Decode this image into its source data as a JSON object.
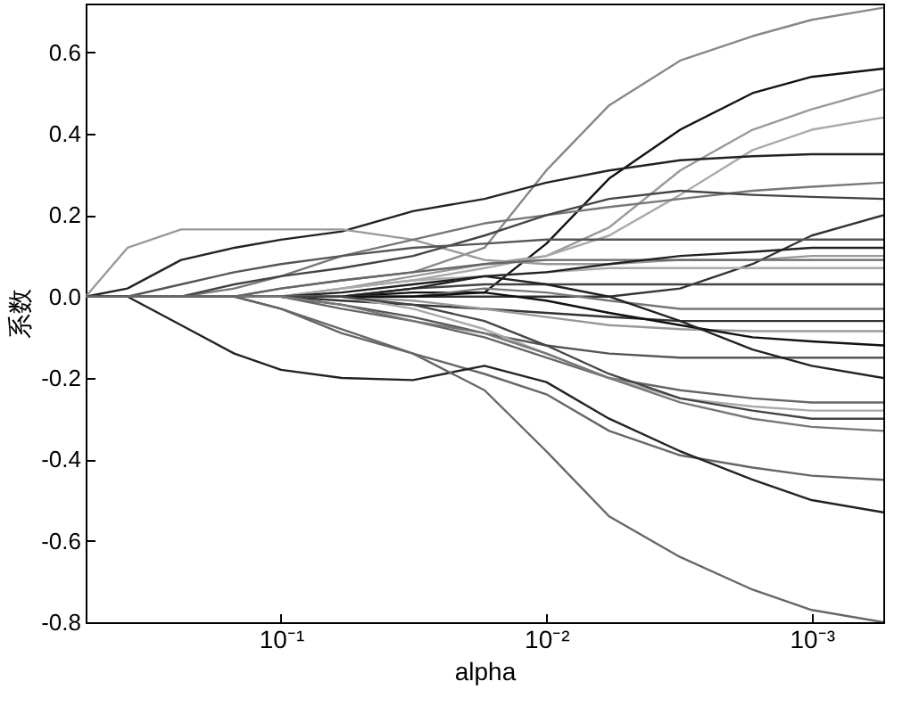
{
  "chart_data": {
    "type": "line",
    "xlabel": "alpha",
    "ylabel": "系数",
    "log": "x",
    "x": [
      0.545,
      0.379,
      0.238,
      0.15,
      0.1,
      0.059,
      0.0318,
      0.0171,
      0.01,
      0.0058,
      0.00313,
      0.00167,
      0.001,
      0.000537
    ],
    "xlim": [
      0.545,
      0.000537
    ],
    "xticks": [
      {
        "value": 0.1,
        "label": "10⁻¹"
      },
      {
        "value": 0.01,
        "label": "10⁻²"
      },
      {
        "value": 0.001,
        "label": "10⁻³"
      }
    ],
    "ylim": [
      -0.8,
      0.72
    ],
    "yticks": [
      {
        "value": -0.8,
        "label": "-0.8"
      },
      {
        "value": -0.6,
        "label": "-0.6"
      },
      {
        "value": -0.4,
        "label": "-0.4"
      },
      {
        "value": -0.2,
        "label": "-0.2"
      },
      {
        "value": 0,
        "label": "0.0"
      },
      {
        "value": 0.2,
        "label": "0.2"
      },
      {
        "value": 0.4,
        "label": "0.4"
      },
      {
        "value": 0.6,
        "label": "0.6"
      }
    ],
    "series": [
      {
        "color": "#888888",
        "values": [
          0,
          0,
          0,
          0,
          0.02,
          0.04,
          0.06,
          0.12,
          0.31,
          0.47,
          0.58,
          0.64,
          0.68,
          0.71
        ]
      },
      {
        "color": "#111111",
        "values": [
          0,
          0,
          0,
          0,
          0,
          0,
          0.01,
          0.01,
          0.13,
          0.29,
          0.41,
          0.5,
          0.54,
          0.56
        ]
      },
      {
        "color": "#999999",
        "values": [
          0,
          0,
          0,
          0,
          0,
          0.02,
          0.05,
          0.08,
          0.1,
          0.17,
          0.31,
          0.41,
          0.46,
          0.51
        ]
      },
      {
        "color": "#aaaaaa",
        "values": [
          0,
          0,
          0,
          0,
          0,
          0.02,
          0.04,
          0.07,
          0.1,
          0.15,
          0.25,
          0.36,
          0.41,
          0.44
        ]
      },
      {
        "color": "#222222",
        "values": [
          0,
          0.02,
          0.09,
          0.12,
          0.14,
          0.16,
          0.21,
          0.24,
          0.28,
          0.31,
          0.335,
          0.345,
          0.35,
          0.35
        ]
      },
      {
        "color": "#999999",
        "values": [
          0,
          0.12,
          0.165,
          0.165,
          0.165,
          0.165,
          0.14,
          0.09,
          0.08,
          0.08,
          0.09,
          0.09,
          0.1,
          0.1
        ]
      },
      {
        "color": "#777777",
        "values": [
          0,
          0,
          0,
          0.02,
          0.05,
          0.1,
          0.14,
          0.18,
          0.2,
          0.22,
          0.24,
          0.26,
          0.27,
          0.28
        ]
      },
      {
        "color": "#444444",
        "values": [
          0,
          0,
          0,
          0.03,
          0.05,
          0.07,
          0.1,
          0.15,
          0.2,
          0.24,
          0.26,
          0.25,
          0.245,
          0.24
        ]
      },
      {
        "color": "#333333",
        "values": [
          0,
          0,
          0,
          0,
          0,
          0,
          0,
          0,
          0,
          0,
          0.02,
          0.08,
          0.15,
          0.2
        ]
      },
      {
        "color": "#555555",
        "values": [
          0,
          0,
          0.03,
          0.06,
          0.08,
          0.1,
          0.12,
          0.13,
          0.14,
          0.14,
          0.14,
          0.14,
          0.14,
          0.14
        ]
      },
      {
        "color": "#666666",
        "values": [
          0,
          0,
          0,
          0,
          0.02,
          0.04,
          0.06,
          0.08,
          0.09,
          0.09,
          0.09,
          0.09,
          0.09,
          0.09
        ]
      },
      {
        "color": "#aaaaaa",
        "values": [
          0,
          0,
          0,
          0,
          0,
          0.02,
          0.04,
          0.05,
          0.06,
          0.07,
          0.07,
          0.07,
          0.07,
          0.07
        ]
      },
      {
        "color": "#444444",
        "values": [
          0,
          0,
          0,
          0,
          0,
          0,
          0.02,
          0.03,
          0.03,
          0.03,
          0.03,
          0.03,
          0.03,
          0.03
        ]
      },
      {
        "color": "#222222",
        "values": [
          0,
          0,
          0,
          0,
          0,
          0.01,
          0.03,
          0.05,
          0.06,
          0.08,
          0.1,
          0.11,
          0.12,
          0.12
        ]
      },
      {
        "color": "#777777",
        "values": [
          0,
          0,
          0,
          0,
          0,
          0,
          0,
          0.02,
          0.01,
          -0.01,
          -0.03,
          -0.03,
          -0.03,
          -0.03
        ]
      },
      {
        "color": "#333333",
        "values": [
          0,
          0,
          0,
          0,
          0,
          -0.01,
          -0.02,
          -0.03,
          -0.04,
          -0.05,
          -0.06,
          -0.06,
          -0.06,
          -0.06
        ]
      },
      {
        "color": "#999999",
        "values": [
          0,
          0,
          0,
          0,
          0,
          0,
          -0.01,
          -0.03,
          -0.05,
          -0.07,
          -0.08,
          -0.085,
          -0.085,
          -0.085
        ]
      },
      {
        "color": "#111111",
        "values": [
          0,
          0,
          0,
          0,
          0,
          0,
          0,
          0.01,
          -0.01,
          -0.04,
          -0.07,
          -0.1,
          -0.11,
          -0.12
        ]
      },
      {
        "color": "#555555",
        "values": [
          0,
          0,
          0,
          0,
          0,
          -0.02,
          -0.05,
          -0.09,
          -0.12,
          -0.14,
          -0.15,
          -0.15,
          -0.15,
          -0.15
        ]
      },
      {
        "color": "#222222",
        "values": [
          0,
          0,
          0,
          0,
          0,
          0,
          0.02,
          0.05,
          0.03,
          0,
          -0.06,
          -0.13,
          -0.17,
          -0.2
        ]
      },
      {
        "color": "#666666",
        "values": [
          0,
          0,
          0,
          0,
          0,
          -0.03,
          -0.06,
          -0.1,
          -0.15,
          -0.2,
          -0.23,
          -0.25,
          -0.26,
          -0.26
        ]
      },
      {
        "color": "#aaaaaa",
        "values": [
          0,
          0,
          0,
          0,
          0,
          0,
          -0.03,
          -0.08,
          -0.14,
          -0.2,
          -0.25,
          -0.27,
          -0.28,
          -0.28
        ]
      },
      {
        "color": "#444444",
        "values": [
          0,
          0,
          0,
          0,
          0,
          0,
          -0.02,
          -0.06,
          -0.12,
          -0.19,
          -0.25,
          -0.28,
          -0.3,
          -0.3
        ]
      },
      {
        "color": "#777777",
        "values": [
          0,
          0,
          0,
          0,
          0,
          -0.02,
          -0.06,
          -0.09,
          -0.14,
          -0.2,
          -0.26,
          -0.3,
          -0.32,
          -0.33
        ]
      },
      {
        "color": "#666666",
        "values": [
          0,
          0,
          0,
          0,
          -0.03,
          -0.09,
          -0.14,
          -0.19,
          -0.24,
          -0.33,
          -0.39,
          -0.42,
          -0.44,
          -0.45
        ]
      },
      {
        "color": "#222222",
        "values": [
          0,
          0,
          -0.07,
          -0.14,
          -0.18,
          -0.2,
          -0.205,
          -0.17,
          -0.21,
          -0.3,
          -0.38,
          -0.45,
          -0.5,
          -0.53
        ]
      },
      {
        "color": "#666666",
        "values": [
          0,
          0,
          0,
          0,
          -0.03,
          -0.08,
          -0.14,
          -0.23,
          -0.38,
          -0.54,
          -0.64,
          -0.72,
          -0.77,
          -0.8
        ]
      }
    ]
  }
}
